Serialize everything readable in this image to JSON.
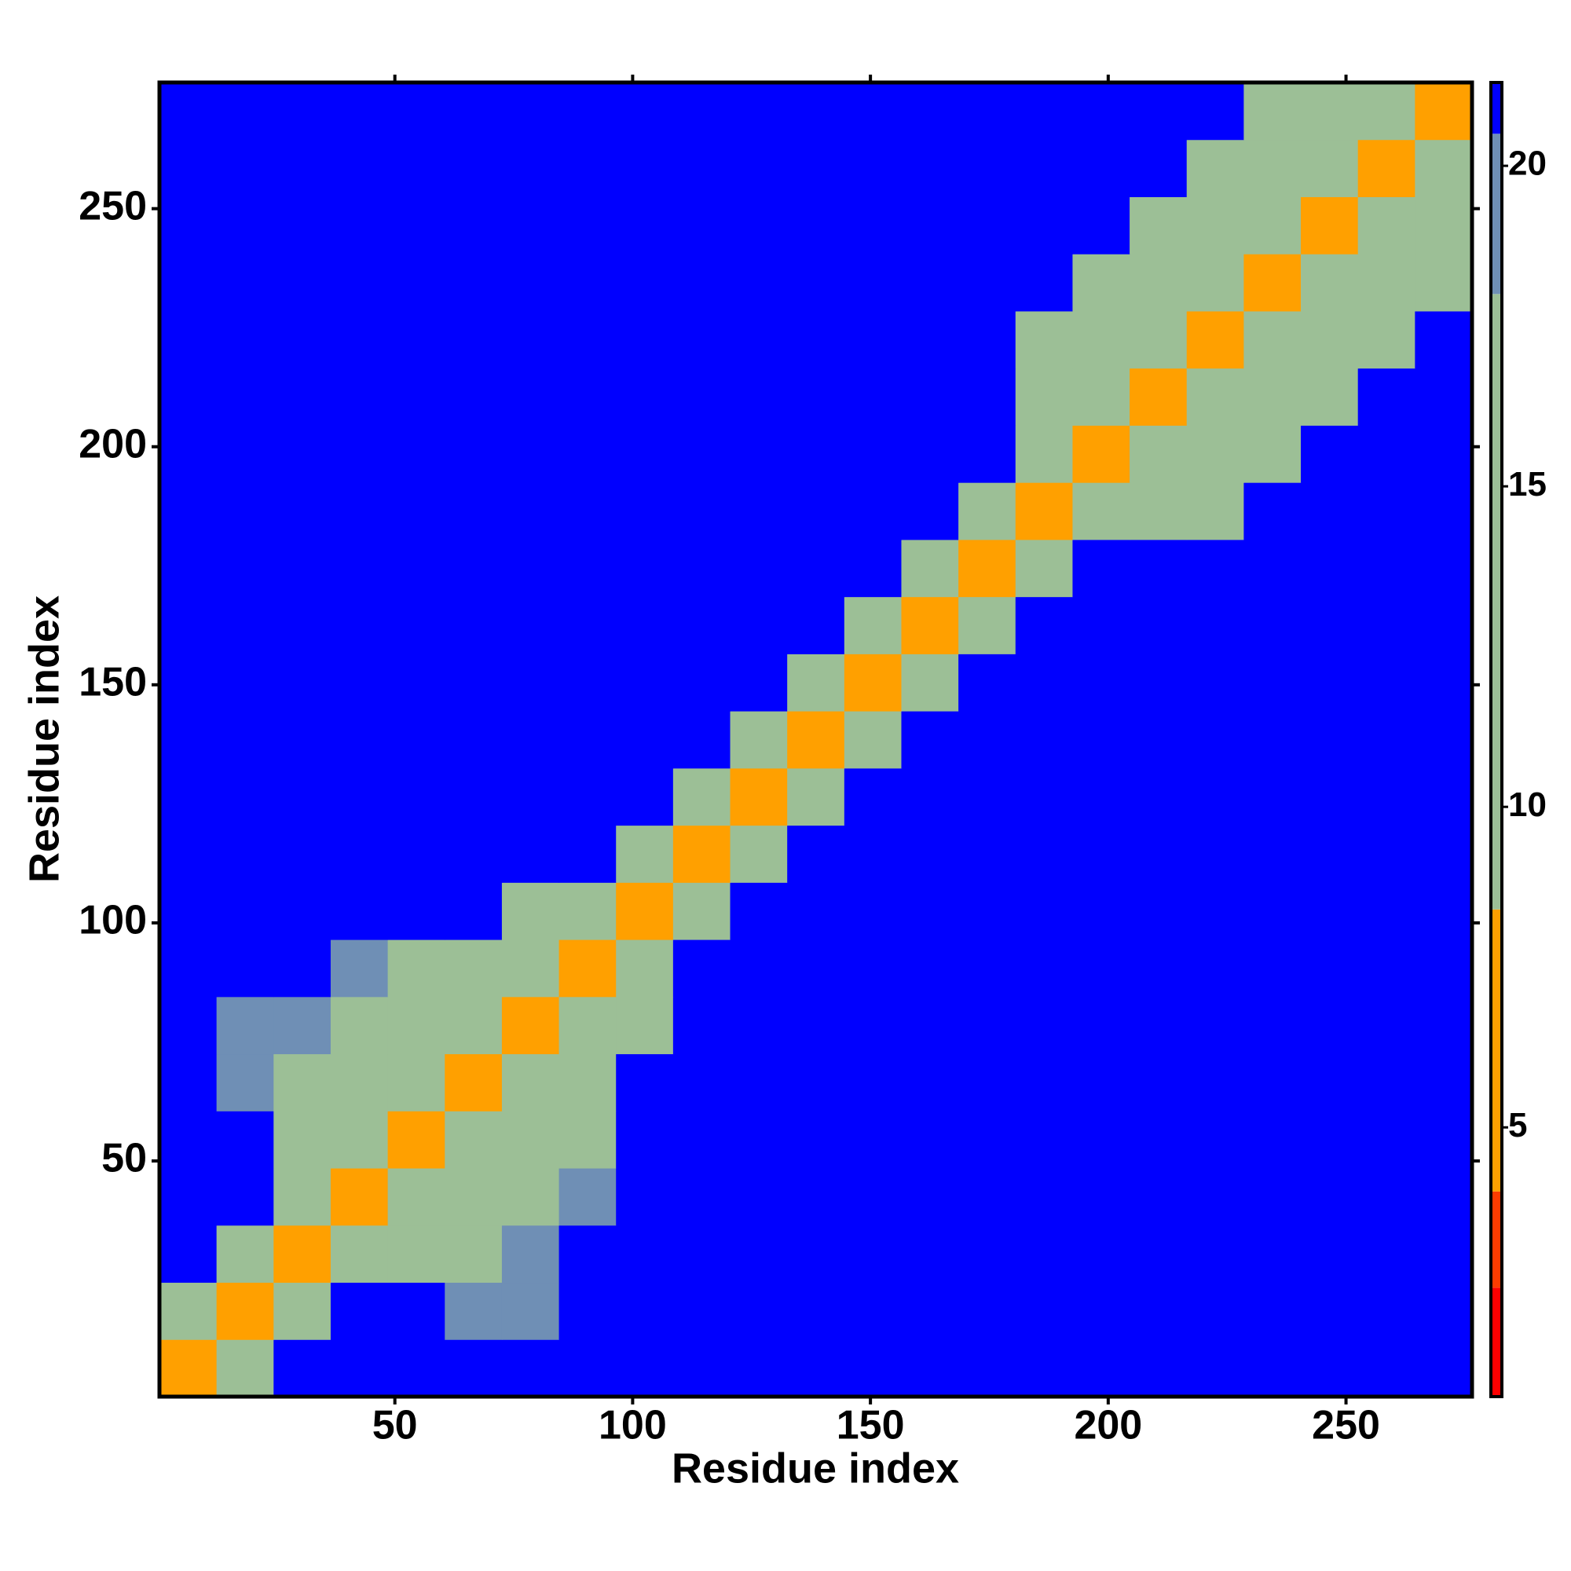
{
  "chart_data": {
    "type": "heatmap",
    "xlabel": "Residue index",
    "ylabel": "Residue index",
    "xbins": [
      0.5,
      12.5,
      24.5,
      36.5,
      48.5,
      60.5,
      72.5,
      84.5,
      96.5,
      108.5,
      120.5,
      132.5,
      144.5,
      156.5,
      168.5,
      180.5,
      192.5,
      204.5,
      216.5,
      228.5,
      240.5,
      252.5,
      264.5,
      276.5
    ],
    "ybins": [
      0.5,
      12.5,
      24.5,
      36.5,
      48.5,
      60.5,
      72.5,
      84.5,
      96.5,
      108.5,
      120.5,
      132.5,
      144.5,
      156.5,
      168.5,
      180.5,
      192.5,
      204.5,
      216.5,
      228.5,
      240.5,
      252.5,
      264.5,
      276.5
    ],
    "xlim": [
      0.5,
      276.5
    ],
    "ylim": [
      0.5,
      276.5
    ],
    "xticks": [
      50,
      100,
      150,
      200,
      250
    ],
    "yticks": [
      50,
      100,
      150,
      200,
      250
    ],
    "zlim": [
      0.8,
      21.3
    ],
    "zticks": [
      5,
      10,
      15,
      20
    ],
    "colorscale": [
      {
        "value": 2.5,
        "color": "#ff0000"
      },
      {
        "value": 4,
        "color": "#ff3c00"
      },
      {
        "value": 8.4,
        "color": "#ffa000"
      },
      {
        "value": 18,
        "color": "#9cbf96"
      },
      {
        "value": 20.5,
        "color": "#6f8fb5"
      },
      {
        "value": 21.3,
        "color": "#0000ff"
      }
    ],
    "values": [
      [
        5,
        18,
        21,
        21,
        21,
        21,
        21,
        21,
        21,
        21,
        21,
        21,
        21,
        21,
        21,
        21,
        21,
        21,
        21,
        21,
        21,
        21,
        21
      ],
      [
        18,
        5,
        18,
        21,
        21,
        19,
        19,
        21,
        21,
        21,
        21,
        21,
        21,
        21,
        21,
        21,
        21,
        21,
        21,
        21,
        21,
        21,
        21
      ],
      [
        21,
        18,
        5,
        12,
        16,
        18,
        19,
        21,
        21,
        21,
        21,
        21,
        21,
        21,
        21,
        21,
        21,
        21,
        21,
        21,
        21,
        21,
        21
      ],
      [
        21,
        21,
        12,
        5,
        12,
        16,
        18,
        19,
        21,
        21,
        21,
        21,
        21,
        21,
        21,
        21,
        21,
        21,
        21,
        21,
        21,
        21,
        21
      ],
      [
        21,
        21,
        16,
        12,
        5,
        12,
        16,
        18,
        21,
        21,
        21,
        21,
        21,
        21,
        21,
        21,
        21,
        21,
        21,
        21,
        21,
        21,
        21
      ],
      [
        21,
        19,
        18,
        16,
        12,
        5,
        12,
        16,
        21,
        21,
        21,
        21,
        21,
        21,
        21,
        21,
        21,
        21,
        21,
        21,
        21,
        21,
        21
      ],
      [
        21,
        19,
        19,
        18,
        16,
        12,
        5,
        12,
        16,
        21,
        21,
        21,
        21,
        21,
        21,
        21,
        21,
        21,
        21,
        21,
        21,
        21,
        21
      ],
      [
        21,
        21,
        21,
        19,
        18,
        16,
        12,
        5,
        12,
        21,
        21,
        21,
        21,
        21,
        21,
        21,
        21,
        21,
        21,
        21,
        21,
        21,
        21
      ],
      [
        21,
        21,
        21,
        21,
        21,
        21,
        16,
        12,
        5,
        18,
        21,
        21,
        21,
        21,
        21,
        21,
        21,
        21,
        21,
        21,
        21,
        21,
        21
      ],
      [
        21,
        21,
        21,
        21,
        21,
        21,
        21,
        21,
        18,
        5,
        18,
        21,
        21,
        21,
        21,
        21,
        21,
        21,
        21,
        21,
        21,
        21,
        21
      ],
      [
        21,
        21,
        21,
        21,
        21,
        21,
        21,
        21,
        21,
        18,
        5,
        18,
        21,
        21,
        21,
        21,
        21,
        21,
        21,
        21,
        21,
        21,
        21
      ],
      [
        21,
        21,
        21,
        21,
        21,
        21,
        21,
        21,
        21,
        21,
        18,
        5,
        18,
        21,
        21,
        21,
        21,
        21,
        21,
        21,
        21,
        21,
        21
      ],
      [
        21,
        21,
        21,
        21,
        21,
        21,
        21,
        21,
        21,
        21,
        21,
        18,
        5,
        18,
        21,
        21,
        21,
        21,
        21,
        21,
        21,
        21,
        21
      ],
      [
        21,
        21,
        21,
        21,
        21,
        21,
        21,
        21,
        21,
        21,
        21,
        21,
        18,
        5,
        18,
        21,
        21,
        21,
        21,
        21,
        21,
        21,
        21
      ],
      [
        21,
        21,
        21,
        21,
        21,
        21,
        21,
        21,
        21,
        21,
        21,
        21,
        21,
        18,
        5,
        12,
        21,
        21,
        21,
        21,
        21,
        21,
        21
      ],
      [
        21,
        21,
        21,
        21,
        21,
        21,
        21,
        21,
        21,
        21,
        21,
        21,
        21,
        21,
        12,
        5,
        12,
        16,
        18,
        21,
        21,
        21,
        21
      ],
      [
        21,
        21,
        21,
        21,
        21,
        21,
        21,
        21,
        21,
        21,
        21,
        21,
        21,
        21,
        21,
        12,
        5,
        12,
        16,
        18,
        21,
        21,
        21
      ],
      [
        21,
        21,
        21,
        21,
        21,
        21,
        21,
        21,
        21,
        21,
        21,
        21,
        21,
        21,
        21,
        16,
        12,
        5,
        12,
        16,
        18,
        21,
        21
      ],
      [
        21,
        21,
        21,
        21,
        21,
        21,
        21,
        21,
        21,
        21,
        21,
        21,
        21,
        21,
        21,
        18,
        16,
        12,
        5,
        12,
        16,
        18,
        21
      ],
      [
        21,
        21,
        21,
        21,
        21,
        21,
        21,
        21,
        21,
        21,
        21,
        21,
        21,
        21,
        21,
        21,
        18,
        16,
        12,
        5,
        12,
        16,
        18
      ],
      [
        21,
        21,
        21,
        21,
        21,
        21,
        21,
        21,
        21,
        21,
        21,
        21,
        21,
        21,
        21,
        21,
        21,
        18,
        16,
        12,
        5,
        12,
        16
      ],
      [
        21,
        21,
        21,
        21,
        21,
        21,
        21,
        21,
        21,
        21,
        21,
        21,
        21,
        21,
        21,
        21,
        21,
        21,
        18,
        16,
        12,
        5,
        12
      ],
      [
        21,
        21,
        21,
        21,
        21,
        21,
        21,
        21,
        21,
        21,
        21,
        21,
        21,
        21,
        21,
        21,
        21,
        21,
        21,
        18,
        16,
        12,
        5
      ]
    ]
  }
}
